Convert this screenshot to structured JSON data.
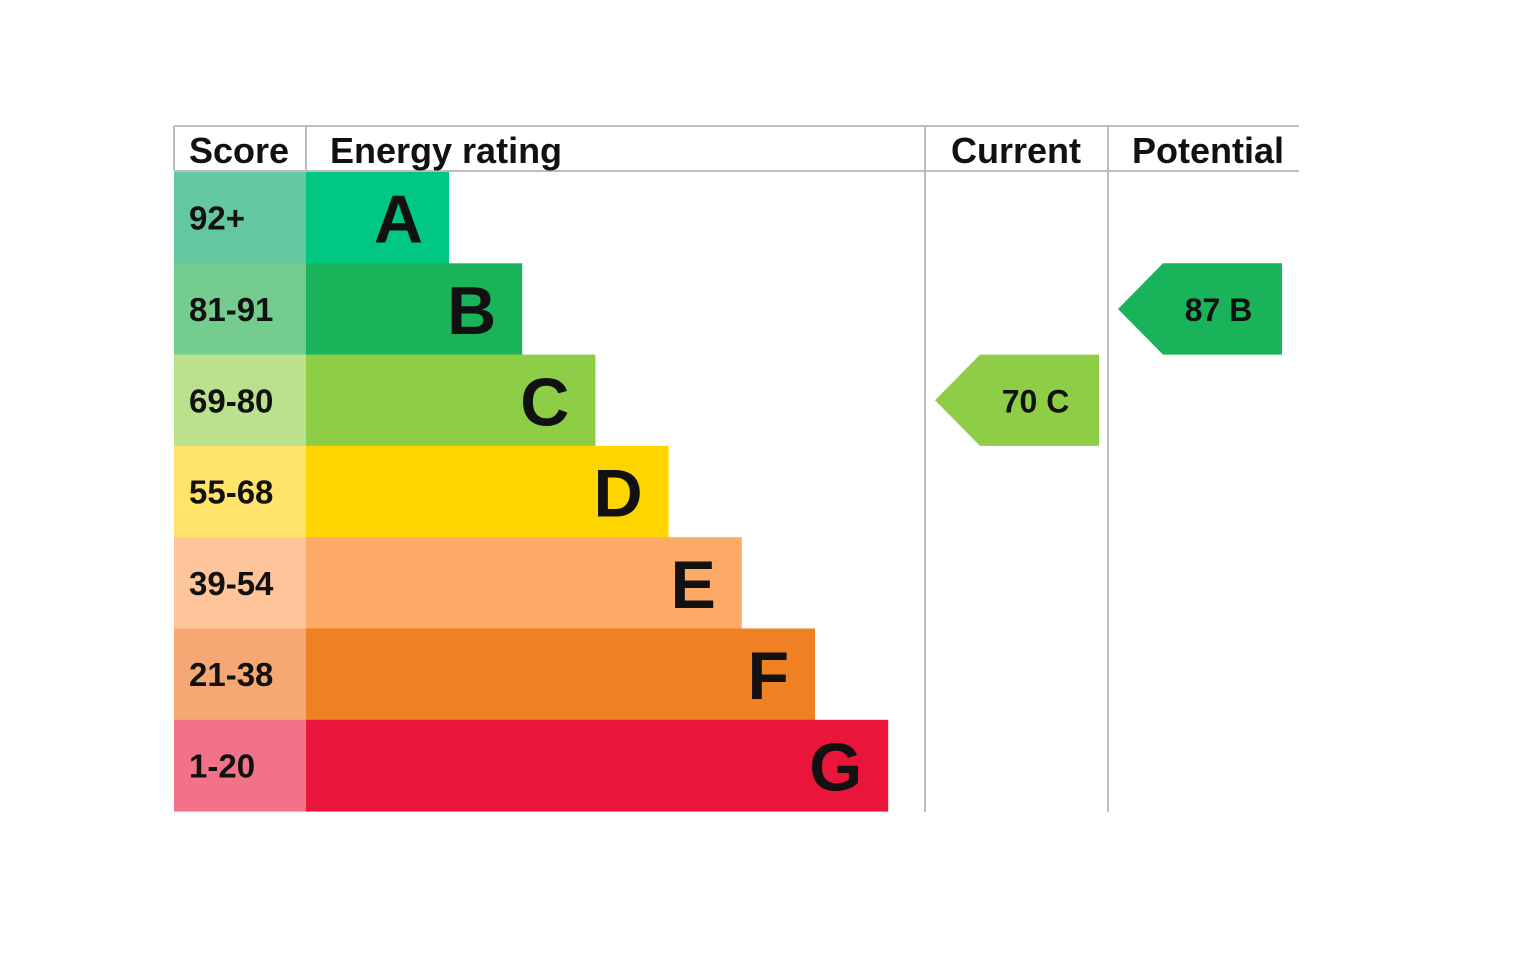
{
  "chart_data": {
    "type": "bar",
    "headers": {
      "score": "Score",
      "rating": "Energy rating",
      "current": "Current",
      "potential": "Potential"
    },
    "bands": [
      {
        "letter": "A",
        "range": "92+",
        "bar_color": "#00c781",
        "score_color": "#63c7a0"
      },
      {
        "letter": "B",
        "range": "81-91",
        "bar_color": "#19b459",
        "score_color": "#74cc8e"
      },
      {
        "letter": "C",
        "range": "69-80",
        "bar_color": "#8dce46",
        "score_color": "#bbe08e"
      },
      {
        "letter": "D",
        "range": "55-68",
        "bar_color": "#ffd500",
        "score_color": "#ffe36a"
      },
      {
        "letter": "E",
        "range": "39-54",
        "bar_color": "#fcaa65",
        "score_color": "#fec59b"
      },
      {
        "letter": "F",
        "range": "21-38",
        "bar_color": "#ef8023",
        "score_color": "#f5a873"
      },
      {
        "letter": "G",
        "range": "1-20",
        "bar_color": "#e9153b",
        "score_color": "#f2728a"
      }
    ],
    "current": {
      "score": 70,
      "band": "C",
      "label": "70  C",
      "color": "#8dce46"
    },
    "potential": {
      "score": 87,
      "band": "B",
      "label": "87  B",
      "color": "#19b459"
    }
  }
}
